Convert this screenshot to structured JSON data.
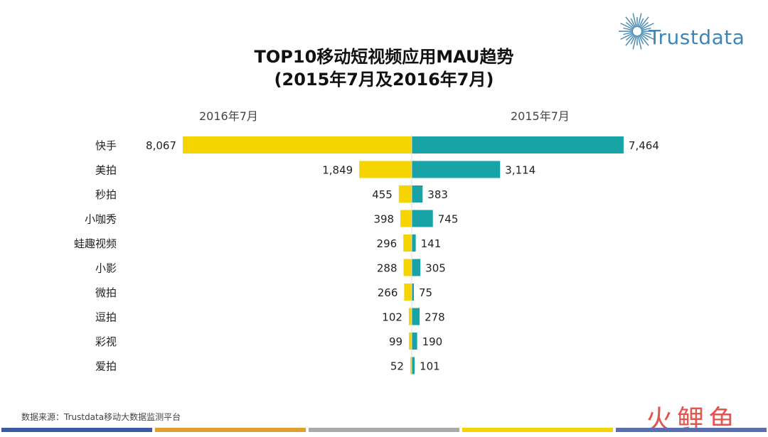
{
  "title_line1": "TOP10移动短视频应用MAU趋势",
  "title_line2": "(2015年7月及2016年7月)",
  "logo_text": "Trustdata",
  "source": "数据来源：Trustdata移动大数据监测平台",
  "watermark": "火鲤鱼",
  "colors": {
    "left_series": "#f5d400",
    "right_series": "#18a3a6",
    "logo": "#3f86b5",
    "footer": [
      "#3c5aa0",
      "#e0a030",
      "#aaaaaa",
      "#f5d400",
      "#5a6fb0"
    ]
  },
  "chart_data": {
    "type": "bar",
    "orientation": "horizontal-butterfly",
    "categories": [
      "快手",
      "美拍",
      "秒拍",
      "小咖秀",
      "蛙趣视频",
      "小影",
      "微拍",
      "逗拍",
      "彩视",
      "爱拍"
    ],
    "series": [
      {
        "name": "2016年7月",
        "side": "left",
        "color": "#f5d400",
        "values": [
          8067,
          1849,
          455,
          398,
          296,
          288,
          266,
          102,
          99,
          52
        ],
        "labels": [
          "8,067",
          "1,849",
          "455",
          "398",
          "296",
          "288",
          "266",
          "102",
          "99",
          "52"
        ]
      },
      {
        "name": "2015年7月",
        "side": "right",
        "color": "#18a3a6",
        "values": [
          7464,
          3114,
          383,
          745,
          141,
          305,
          75,
          278,
          190,
          101
        ],
        "labels": [
          "7,464",
          "3,114",
          "383",
          "745",
          "141",
          "305",
          "75",
          "278",
          "190",
          "101"
        ]
      }
    ],
    "xlim": [
      0,
      8067
    ]
  }
}
